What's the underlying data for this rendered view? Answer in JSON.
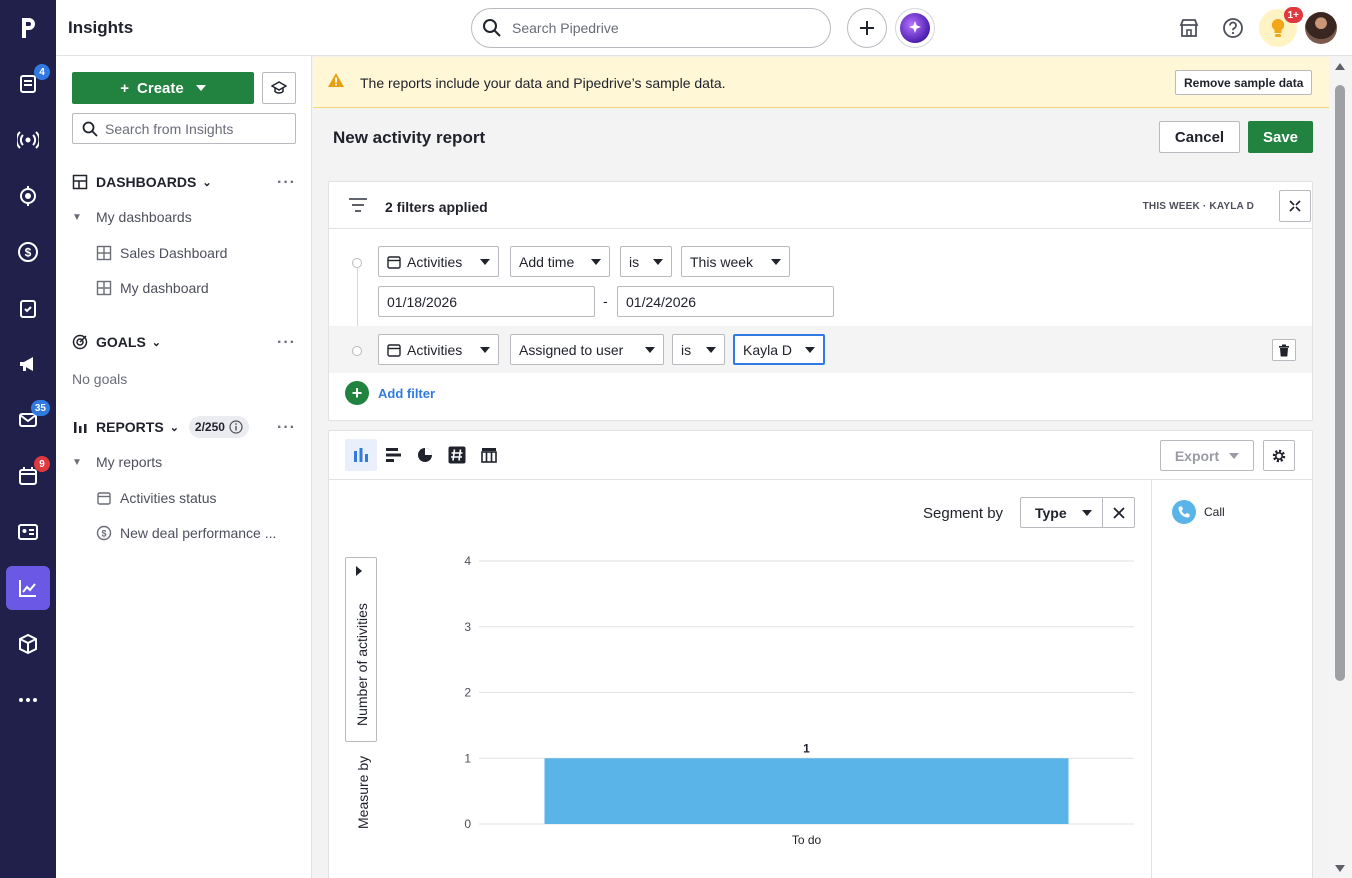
{
  "app": {
    "title": "Insights"
  },
  "topbar": {
    "search_placeholder": "Search Pipedrive",
    "notifications_badge": "1+"
  },
  "rail": {
    "badges": {
      "leads": "4",
      "mail": "35",
      "activities": "9"
    }
  },
  "sidebar": {
    "create_label": "Create",
    "search_placeholder": "Search from Insights",
    "dashboards": {
      "title": "DASHBOARDS",
      "group": "My dashboards",
      "items": [
        "Sales Dashboard",
        "My dashboard"
      ]
    },
    "goals": {
      "title": "GOALS",
      "empty": "No goals"
    },
    "reports": {
      "title": "REPORTS",
      "count": "2/250",
      "group": "My reports",
      "items": [
        "Activities status",
        "New deal performance ..."
      ]
    }
  },
  "banner": {
    "message": "The reports include your data and Pipedrive’s sample data.",
    "button": "Remove sample data"
  },
  "header": {
    "title": "New activity report",
    "cancel": "Cancel",
    "save": "Save"
  },
  "filters": {
    "title": "2 filters applied",
    "summary": "THIS WEEK  ·  KAYLA D",
    "rows": [
      {
        "entity": "Activities",
        "field": "Add time",
        "operator": "is",
        "value": "This week",
        "date_from": "01/18/2026",
        "date_sep": "-",
        "date_to": "01/24/2026"
      },
      {
        "entity": "Activities",
        "field": "Assigned to user",
        "operator": "is",
        "value": "Kayla D"
      }
    ],
    "add_label": "Add filter"
  },
  "chart_toolbar": {
    "export": "Export"
  },
  "segment": {
    "label": "Segment by",
    "value": "Type"
  },
  "measure": {
    "by_label": "Measure by",
    "metric": "Number of activities"
  },
  "legend": [
    {
      "name": "Call",
      "color": "#5ab4e8"
    }
  ],
  "chart_data": {
    "type": "bar",
    "categories": [
      "To do"
    ],
    "series": [
      {
        "name": "Call",
        "values": [
          1
        ]
      }
    ],
    "data_labels": [
      "1"
    ],
    "xlabel": "",
    "ylabel": "Number of activities",
    "ylim": [
      0,
      4
    ],
    "yticks": [
      0,
      1,
      2,
      3,
      4
    ],
    "grid": true,
    "bar_color": "#5ab4e8"
  }
}
